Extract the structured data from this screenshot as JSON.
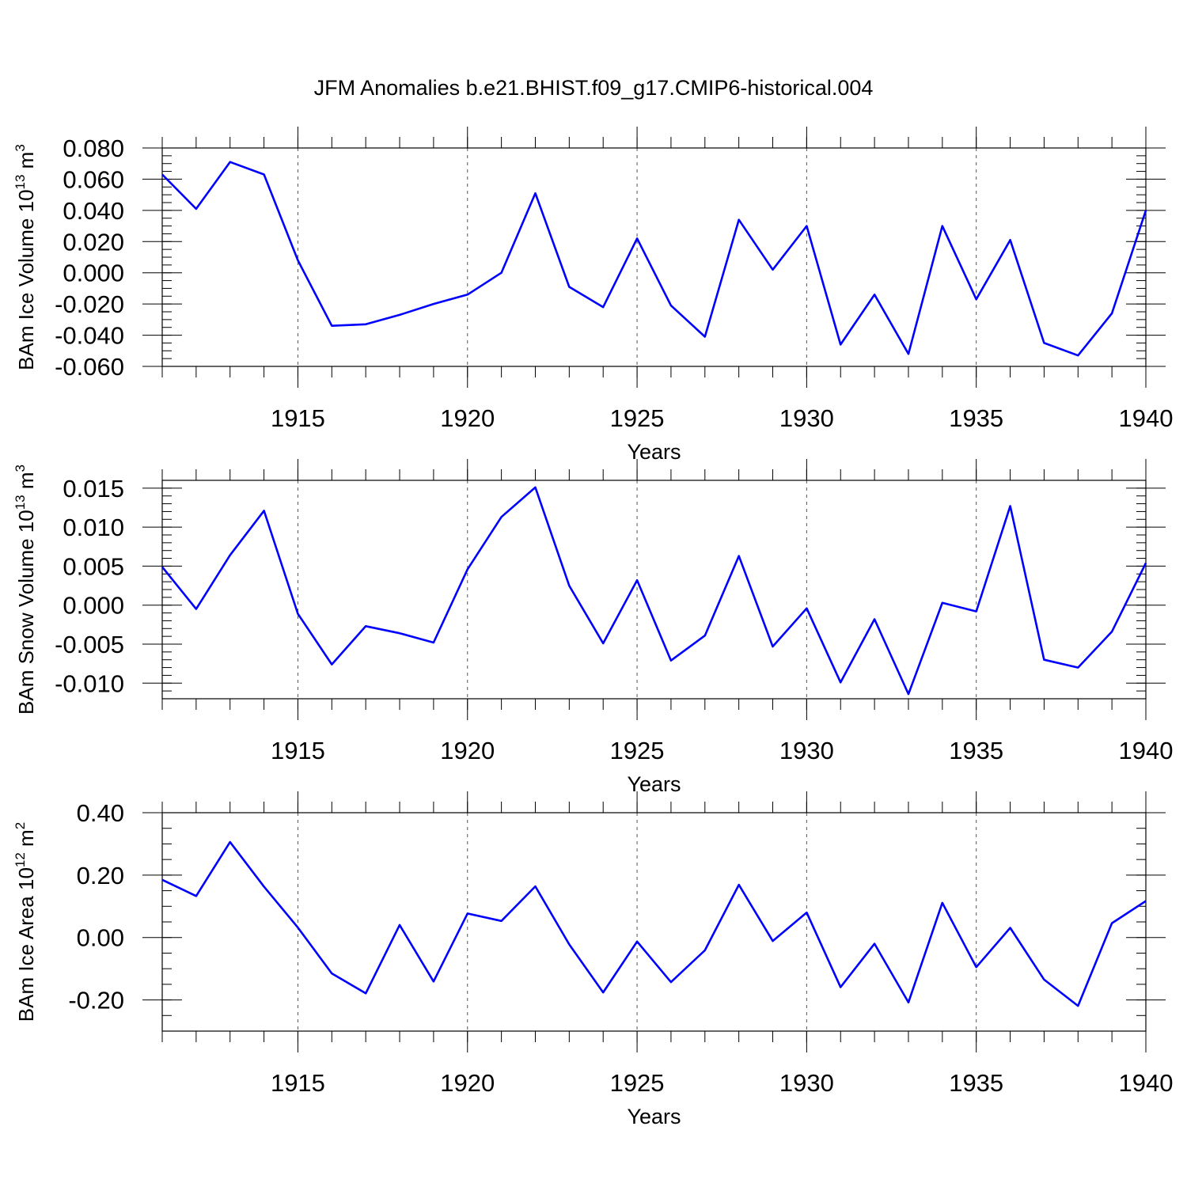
{
  "title": "JFM Anomalies b.e21.BHIST.f09_g17.CMIP6-historical.004",
  "colors": {
    "line": "#0000ff",
    "axis": "#000000",
    "grid": "#555555"
  },
  "chart_data": [
    {
      "type": "line",
      "title": "JFM Anomalies b.e21.BHIST.f09_g17.CMIP6-historical.004",
      "ylabel_main": "BAm Ice Volume 10",
      "ylabel_exp": "13",
      "ylabel_unit": " m",
      "ylabel_unit_exp": "3",
      "xlabel": "Years",
      "xlim": [
        1911,
        1940
      ],
      "ylim": [
        -0.06,
        0.08
      ],
      "ymajor": [
        0.08,
        0.06,
        0.04,
        0.02,
        0.0,
        -0.02,
        -0.04,
        -0.06
      ],
      "ytick_labels": [
        "0.080",
        "0.060",
        "0.040",
        "0.020",
        "0.000",
        "-0.020",
        "-0.040",
        "-0.060"
      ],
      "yminor_step": 0.005,
      "xmajor": [
        1915,
        1920,
        1925,
        1930,
        1935,
        1940
      ],
      "xtick_labels": [
        "1915",
        "1920",
        "1925",
        "1930",
        "1935",
        "1940"
      ],
      "grid": "dashed vertical at major x ticks",
      "x": [
        1911,
        1912,
        1913,
        1914,
        1915,
        1916,
        1917,
        1918,
        1919,
        1920,
        1921,
        1922,
        1923,
        1924,
        1925,
        1926,
        1927,
        1928,
        1929,
        1930,
        1931,
        1932,
        1933,
        1934,
        1935,
        1936,
        1937,
        1938,
        1939,
        1940
      ],
      "values": [
        0.063,
        0.041,
        0.071,
        0.063,
        0.008,
        -0.034,
        -0.033,
        -0.027,
        -0.02,
        -0.014,
        0.0,
        0.051,
        -0.009,
        -0.022,
        0.022,
        -0.021,
        -0.041,
        0.034,
        0.002,
        0.03,
        -0.046,
        -0.014,
        -0.052,
        0.03,
        -0.017,
        0.021,
        -0.045,
        -0.053,
        -0.026,
        0.04
      ]
    },
    {
      "type": "line",
      "ylabel_main": "BAm Snow Volume 10",
      "ylabel_exp": "13",
      "ylabel_unit": " m",
      "ylabel_unit_exp": "3",
      "xlabel": "Years",
      "xlim": [
        1911,
        1940
      ],
      "ylim": [
        -0.012,
        0.016
      ],
      "ymajor": [
        0.015,
        0.01,
        0.005,
        0.0,
        -0.005,
        -0.01
      ],
      "ytick_labels": [
        "0.015",
        "0.010",
        "0.005",
        "0.000",
        "-0.005",
        "-0.010"
      ],
      "yminor_step": 0.001,
      "xmajor": [
        1915,
        1920,
        1925,
        1930,
        1935,
        1940
      ],
      "xtick_labels": [
        "1915",
        "1920",
        "1925",
        "1930",
        "1935",
        "1940"
      ],
      "grid": "dashed vertical at major x ticks",
      "x": [
        1911,
        1912,
        1913,
        1914,
        1915,
        1916,
        1917,
        1918,
        1919,
        1920,
        1921,
        1922,
        1923,
        1924,
        1925,
        1926,
        1927,
        1928,
        1929,
        1930,
        1931,
        1932,
        1933,
        1934,
        1935,
        1936,
        1937,
        1938,
        1939,
        1940
      ],
      "values": [
        0.0049,
        -0.0005,
        0.0064,
        0.0121,
        -0.0011,
        -0.0076,
        -0.0027,
        -0.0036,
        -0.0048,
        0.0046,
        0.0113,
        0.0151,
        0.0025,
        -0.0049,
        0.0032,
        -0.0071,
        -0.0039,
        0.0063,
        -0.0053,
        -0.0004,
        -0.0099,
        -0.0018,
        -0.0114,
        0.0003,
        -0.0008,
        0.0127,
        -0.007,
        -0.008,
        -0.0034,
        0.0054
      ]
    },
    {
      "type": "line",
      "ylabel_main": "BAm Ice Area 10",
      "ylabel_exp": "12",
      "ylabel_unit": " m",
      "ylabel_unit_exp": "2",
      "xlabel": "Years",
      "xlim": [
        1911,
        1940
      ],
      "ylim": [
        -0.3,
        0.4
      ],
      "ymajor": [
        0.4,
        0.2,
        0.0,
        -0.2
      ],
      "ytick_labels": [
        "0.40",
        "0.20",
        "0.00",
        "-0.20"
      ],
      "yminor_step": 0.05,
      "xmajor": [
        1915,
        1920,
        1925,
        1930,
        1935,
        1940
      ],
      "xtick_labels": [
        "1915",
        "1920",
        "1925",
        "1930",
        "1935",
        "1940"
      ],
      "grid": "dashed vertical at major x ticks",
      "x": [
        1911,
        1912,
        1913,
        1914,
        1915,
        1916,
        1917,
        1918,
        1919,
        1920,
        1921,
        1922,
        1923,
        1924,
        1925,
        1926,
        1927,
        1928,
        1929,
        1930,
        1931,
        1932,
        1933,
        1934,
        1935,
        1936,
        1937,
        1938,
        1939,
        1940
      ],
      "values": [
        0.185,
        0.133,
        0.306,
        0.163,
        0.032,
        -0.115,
        -0.179,
        0.04,
        -0.141,
        0.077,
        0.053,
        0.164,
        -0.022,
        -0.176,
        -0.013,
        -0.143,
        -0.041,
        0.169,
        -0.011,
        0.08,
        -0.159,
        -0.02,
        -0.208,
        0.111,
        -0.095,
        0.031,
        -0.135,
        -0.219,
        0.046,
        0.117
      ]
    }
  ]
}
